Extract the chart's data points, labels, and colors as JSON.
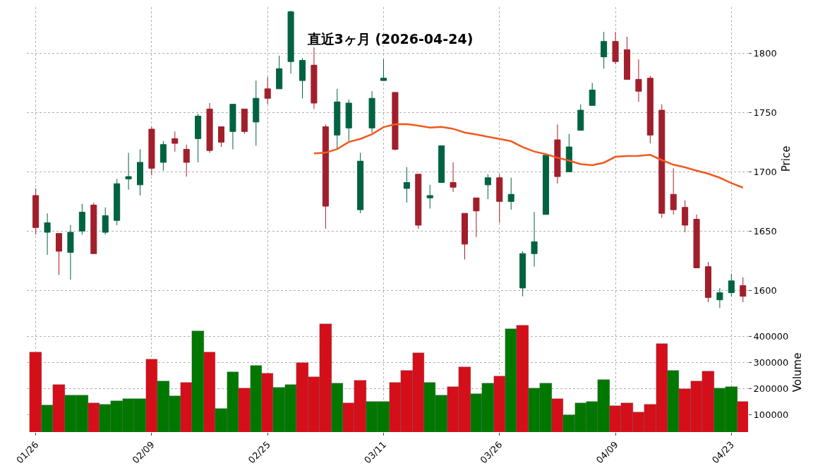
{
  "chart_data": [
    {
      "type": "candlestick",
      "title": "直近3ヶ月 (2026-04-24)",
      "ylabel": "Price",
      "ohlc": [
        [
          1680,
          1686,
          1647,
          1653
        ],
        [
          1649,
          1665,
          1630,
          1657
        ],
        [
          1648,
          1648,
          1613,
          1633
        ],
        [
          1632,
          1655,
          1609,
          1649
        ],
        [
          1650,
          1673,
          1647,
          1666
        ],
        [
          1672,
          1674,
          1631,
          1631
        ],
        [
          1649,
          1670,
          1647,
          1663
        ],
        [
          1659,
          1694,
          1655,
          1690
        ],
        [
          1694,
          1716,
          1685,
          1696
        ],
        [
          1689,
          1719,
          1680,
          1708
        ],
        [
          1736,
          1738,
          1697,
          1703
        ],
        [
          1708,
          1726,
          1701,
          1723
        ],
        [
          1728,
          1734,
          1717,
          1724
        ],
        [
          1719,
          1723,
          1696,
          1708
        ],
        [
          1728,
          1749,
          1708,
          1747
        ],
        [
          1753,
          1758,
          1716,
          1718
        ],
        [
          1738,
          1738,
          1721,
          1725
        ],
        [
          1734,
          1757,
          1719,
          1757
        ],
        [
          1753,
          1753,
          1732,
          1734
        ],
        [
          1742,
          1777,
          1722,
          1762
        ],
        [
          1770,
          1780,
          1757,
          1762
        ],
        [
          1770,
          1798,
          1770,
          1787
        ],
        [
          1793,
          1836,
          1783,
          1835
        ],
        [
          1777,
          1796,
          1762,
          1794
        ],
        [
          1790,
          1805,
          1753,
          1758
        ],
        [
          1738,
          1740,
          1652,
          1671
        ],
        [
          1731,
          1770,
          1719,
          1759
        ],
        [
          1737,
          1761,
          1726,
          1758
        ],
        [
          1668,
          1716,
          1665,
          1709
        ],
        [
          1737,
          1768,
          1733,
          1762
        ],
        [
          1777,
          1795,
          1777,
          1779
        ],
        [
          1767,
          1767,
          1718,
          1719
        ],
        [
          1686,
          1704,
          1674,
          1691
        ],
        [
          1698,
          1698,
          1652,
          1655
        ],
        [
          1678,
          1689,
          1669,
          1680
        ],
        [
          1691,
          1722,
          1691,
          1722
        ],
        [
          1691,
          1708,
          1683,
          1687
        ],
        [
          1665,
          1665,
          1626,
          1639
        ],
        [
          1678,
          1678,
          1645,
          1667
        ],
        [
          1689,
          1698,
          1677,
          1695
        ],
        [
          1695,
          1698,
          1657,
          1675
        ],
        [
          1675,
          1695,
          1668,
          1681
        ],
        [
          1602,
          1633,
          1595,
          1631
        ],
        [
          1631,
          1666,
          1620,
          1641
        ],
        [
          1664,
          1714,
          1664,
          1714
        ],
        [
          1727,
          1740,
          1690,
          1696
        ],
        [
          1700,
          1732,
          1700,
          1721
        ],
        [
          1735,
          1757,
          1735,
          1752
        ],
        [
          1756,
          1775,
          1756,
          1769
        ],
        [
          1797,
          1818,
          1787,
          1810
        ],
        [
          1810,
          1818,
          1791,
          1793
        ],
        [
          1803,
          1814,
          1778,
          1778
        ],
        [
          1778,
          1795,
          1759,
          1768
        ],
        [
          1779,
          1781,
          1724,
          1731
        ],
        [
          1752,
          1757,
          1661,
          1665
        ],
        [
          1681,
          1703,
          1664,
          1668
        ],
        [
          1670,
          1676,
          1649,
          1655
        ],
        [
          1660,
          1664,
          1619,
          1619
        ],
        [
          1620,
          1624,
          1590,
          1594
        ],
        [
          1592,
          1602,
          1585,
          1598
        ],
        [
          1598,
          1614,
          1595,
          1608
        ],
        [
          1604,
          1611,
          1590,
          1595
        ]
      ],
      "colors": [
        "#a11f2b",
        "#006340",
        "#a11f2b",
        "#006340",
        "#006340",
        "#a11f2b",
        "#006340",
        "#006340",
        "#006340",
        "#006340",
        "#a11f2b",
        "#006340",
        "#a11f2b",
        "#a11f2b",
        "#006340",
        "#a11f2b",
        "#a11f2b",
        "#006340",
        "#a11f2b",
        "#006340",
        "#a11f2b",
        "#006340",
        "#006340",
        "#006340",
        "#a11f2b",
        "#a11f2b",
        "#006340",
        "#006340",
        "#006340",
        "#006340",
        "#006340",
        "#a11f2b",
        "#006340",
        "#a11f2b",
        "#006340",
        "#006340",
        "#a11f2b",
        "#a11f2b",
        "#a11f2b",
        "#006340",
        "#a11f2b",
        "#006340",
        "#006340",
        "#006340",
        "#006340",
        "#a11f2b",
        "#006340",
        "#006340",
        "#006340",
        "#006340",
        "#a11f2b",
        "#a11f2b",
        "#a11f2b",
        "#a11f2b",
        "#a11f2b",
        "#a11f2b",
        "#a11f2b",
        "#a11f2b",
        "#a11f2b",
        "#006340",
        "#006340",
        "#a11f2b"
      ],
      "series": [
        {
          "type": "line",
          "color": "#f05a1e",
          "values": [
            null,
            null,
            null,
            null,
            null,
            null,
            null,
            null,
            null,
            null,
            null,
            null,
            null,
            null,
            null,
            null,
            null,
            null,
            null,
            null,
            null,
            null,
            null,
            null,
            1715.5,
            1716.1,
            1719.2,
            1725.2,
            1727.8,
            1731.7,
            1737.7,
            1740.1,
            1740.3,
            1738.9,
            1737.3,
            1737.9,
            1736.3,
            1733.1,
            1731.5,
            1729.6,
            1727.8,
            1725.8,
            1720.8,
            1717.1,
            1714.9,
            1711.9,
            1709.5,
            1706.5,
            1705.6,
            1707.7,
            1712.7,
            1713.3,
            1713.5,
            1714.3,
            1709.9,
            1706.0,
            1703.8,
            1701.0,
            1698.4,
            1695.0,
            1690.5,
            1686.7
          ]
        }
      ],
      "ylim": [
        1583,
        1839
      ],
      "yticks": [
        1600,
        1650,
        1700,
        1750,
        1800
      ],
      "grid": true,
      "tick_labels": "y"
    },
    {
      "type": "bar",
      "ylabel": "Volume",
      "categories": [
        "01/26",
        null,
        null,
        null,
        null,
        null,
        null,
        null,
        null,
        null,
        "02/09",
        null,
        null,
        null,
        null,
        null,
        null,
        null,
        null,
        null,
        "02/25",
        null,
        null,
        null,
        null,
        null,
        null,
        null,
        null,
        null,
        "03/11",
        null,
        null,
        null,
        null,
        null,
        null,
        null,
        null,
        null,
        "03/26",
        null,
        null,
        null,
        null,
        null,
        null,
        null,
        null,
        null,
        "04/09",
        null,
        null,
        null,
        null,
        null,
        null,
        null,
        null,
        null,
        "04/23",
        null
      ],
      "values": [
        340000,
        137000,
        217000,
        174000,
        174000,
        147000,
        140000,
        155000,
        163000,
        163000,
        312000,
        229000,
        172000,
        225000,
        419000,
        340000,
        123000,
        264000,
        203000,
        288000,
        259000,
        206000,
        217000,
        299000,
        246000,
        446000,
        222000,
        145000,
        232000,
        150000,
        150000,
        225000,
        270000,
        336000,
        225000,
        174000,
        208000,
        283000,
        182000,
        222000,
        248000,
        429000,
        442000,
        203000,
        222000,
        163000,
        99000,
        145000,
        150000,
        235000,
        134000,
        145000,
        110000,
        140000,
        372000,
        270000,
        200000,
        228000,
        267000,
        203000,
        208000,
        150000
      ],
      "colors": [
        "#d40f1a",
        "#007800",
        "#d40f1a",
        "#007800",
        "#007800",
        "#d40f1a",
        "#007800",
        "#007800",
        "#007800",
        "#007800",
        "#d40f1a",
        "#007800",
        "#007800",
        "#d40f1a",
        "#007800",
        "#d40f1a",
        "#007800",
        "#007800",
        "#d40f1a",
        "#007800",
        "#d40f1a",
        "#007800",
        "#007800",
        "#d40f1a",
        "#d40f1a",
        "#d40f1a",
        "#007800",
        "#d40f1a",
        "#d40f1a",
        "#007800",
        "#007800",
        "#d40f1a",
        "#d40f1a",
        "#d40f1a",
        "#007800",
        "#007800",
        "#d40f1a",
        "#d40f1a",
        "#007800",
        "#007800",
        "#d40f1a",
        "#007800",
        "#d40f1a",
        "#007800",
        "#007800",
        "#d40f1a",
        "#007800",
        "#007800",
        "#007800",
        "#007800",
        "#d40f1a",
        "#d40f1a",
        "#d40f1a",
        "#d40f1a",
        "#d40f1a",
        "#007800",
        "#d40f1a",
        "#d40f1a",
        "#d40f1a",
        "#007800",
        "#007800",
        "#d40f1a"
      ],
      "ylim": [
        35000,
        490000
      ],
      "yticks": [
        100000,
        200000,
        300000,
        400000
      ],
      "grid": true
    }
  ]
}
